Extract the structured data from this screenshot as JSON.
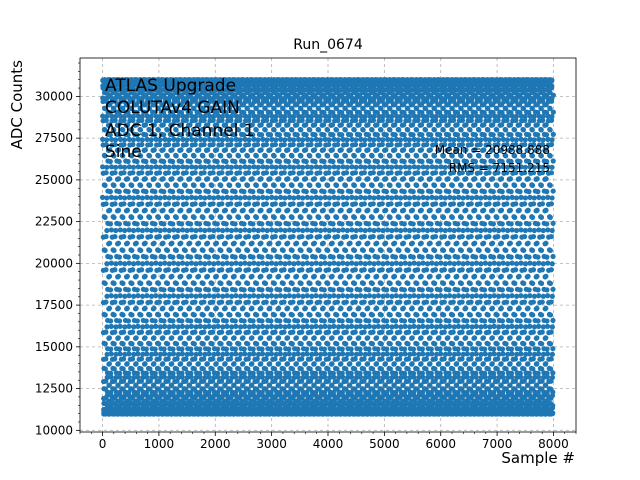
{
  "chart_data": {
    "type": "scatter",
    "title": "Run_0674",
    "xlabel": "Sample #",
    "ylabel": "ADC Counts",
    "xlim": [
      -400,
      8400
    ],
    "ylim": [
      9900,
      32300
    ],
    "xticks": [
      0,
      1000,
      2000,
      3000,
      4000,
      5000,
      6000,
      7000,
      8000
    ],
    "yticks": [
      10000,
      12500,
      15000,
      17500,
      20000,
      22500,
      25000,
      27500,
      30000
    ],
    "grid": true,
    "grid_style": "dashed",
    "marker_color": "#1f77b4",
    "series": [
      {
        "n_samples": 8000,
        "waveform": "sine",
        "y_min": 10970,
        "y_max": 31010,
        "approx_period_samples": 31.6
      }
    ],
    "annotations": {
      "label_lines": [
        "ATLAS Upgrade",
        "COLUTAv4 GAIN",
        "ADC 1, Channel 1",
        "Sine"
      ],
      "mean_text": "Mean = 20988.888",
      "rms_text": "RMS = 7151.215"
    }
  }
}
